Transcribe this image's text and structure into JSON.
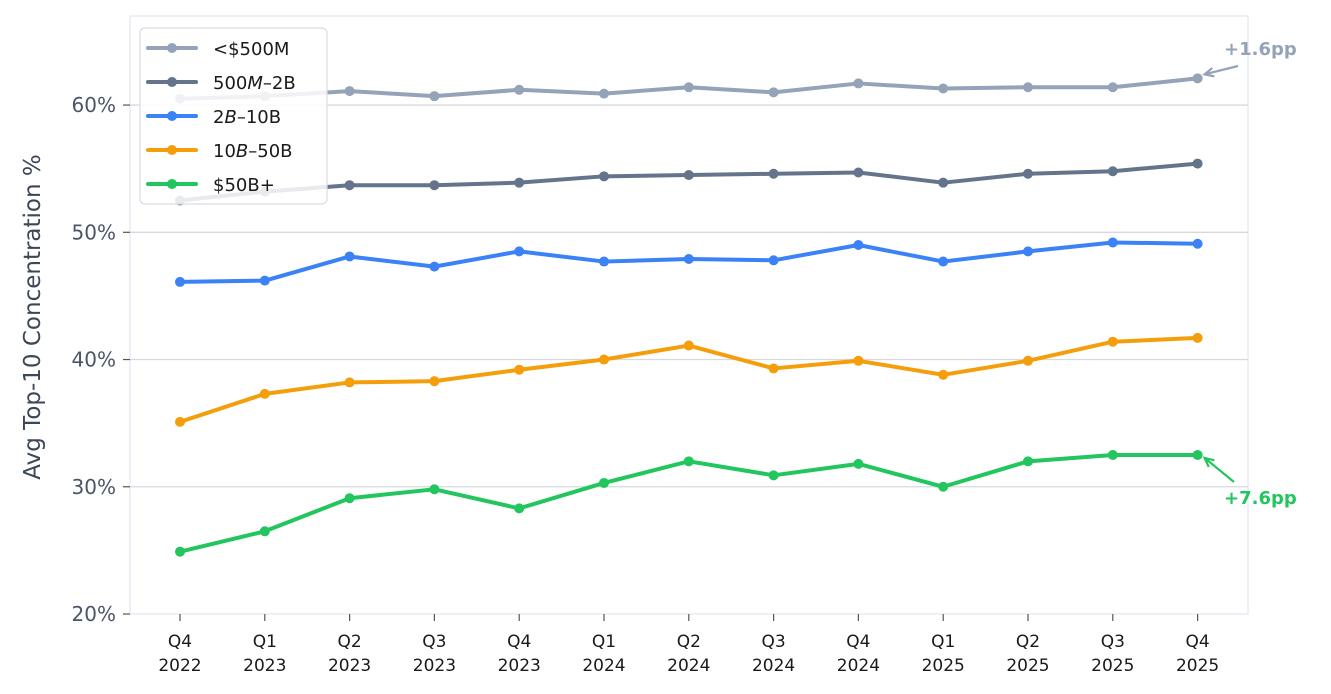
{
  "chart_data": {
    "type": "line",
    "title": "",
    "xlabel": "",
    "ylabel": "Avg Top-10 Concentration %",
    "ylim": [
      20,
      67
    ],
    "yticks": [
      20,
      30,
      40,
      50,
      60
    ],
    "ytick_labels": [
      "20%",
      "30%",
      "40%",
      "50%",
      "60%"
    ],
    "grid": "horizontal",
    "legend_position": "top-left",
    "categories": [
      [
        "Q4",
        "2022"
      ],
      [
        "Q1",
        "2023"
      ],
      [
        "Q2",
        "2023"
      ],
      [
        "Q3",
        "2023"
      ],
      [
        "Q4",
        "2023"
      ],
      [
        "Q1",
        "2024"
      ],
      [
        "Q2",
        "2024"
      ],
      [
        "Q3",
        "2024"
      ],
      [
        "Q4",
        "2024"
      ],
      [
        "Q1",
        "2025"
      ],
      [
        "Q2",
        "2025"
      ],
      [
        "Q3",
        "2025"
      ],
      [
        "Q4",
        "2025"
      ]
    ],
    "series": [
      {
        "name": "<$500M",
        "color": "#94a3b8",
        "values": [
          60.5,
          60.7,
          61.1,
          60.7,
          61.2,
          60.9,
          61.4,
          61.0,
          61.7,
          61.3,
          61.4,
          61.4,
          62.1
        ]
      },
      {
        "name": "500M–2B",
        "name_prefix": "500",
        "name_italic": "M",
        "name_suffix": "–2B",
        "color": "#64748b",
        "values": [
          52.5,
          53.2,
          53.7,
          53.7,
          53.9,
          54.4,
          54.5,
          54.6,
          54.7,
          53.9,
          54.6,
          54.8,
          55.4
        ]
      },
      {
        "name": "2B–10B",
        "name_prefix": "2",
        "name_italic": "B",
        "name_suffix": "–10B",
        "color": "#3b82f6",
        "values": [
          46.1,
          46.2,
          48.1,
          47.3,
          48.5,
          47.7,
          47.9,
          47.8,
          49.0,
          47.7,
          48.5,
          49.2,
          49.1
        ]
      },
      {
        "name": "10B–50B",
        "name_prefix": "10",
        "name_italic": "B",
        "name_suffix": "–50B",
        "color": "#f59e0b",
        "values": [
          35.1,
          37.3,
          38.2,
          38.3,
          39.2,
          40.0,
          41.1,
          39.3,
          39.9,
          38.8,
          39.9,
          41.4,
          41.7
        ]
      },
      {
        "name": "$50B+",
        "color": "#22c55e",
        "values": [
          24.9,
          26.5,
          29.1,
          29.8,
          28.3,
          30.3,
          32.0,
          30.9,
          31.8,
          30.0,
          32.0,
          32.5,
          32.5
        ]
      }
    ],
    "annotations": [
      {
        "text": "+1.6pp",
        "series_index": 0,
        "color": "#94a3b8",
        "placement": "above-right"
      },
      {
        "text": "+7.6pp",
        "series_index": 4,
        "color": "#22c55e",
        "placement": "below-right"
      }
    ]
  }
}
